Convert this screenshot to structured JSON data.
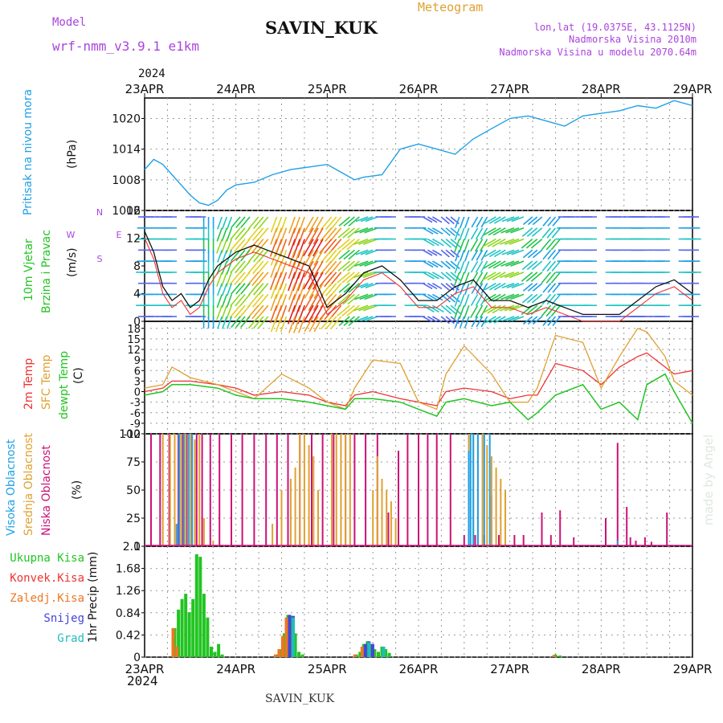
{
  "header": {
    "model_label": "Model",
    "model_name": "wrf-nmm_v3.9.1 e1km",
    "station": "SAVIN_KUK",
    "meteogram": "Meteogram",
    "lonlat": "lon,lat (19.0375E, 43.1125N)",
    "altitude": "Nadmorska Visina 2010m",
    "model_altitude": "Nadmorska Visina u modelu 2070.64m",
    "year": "2024",
    "bottom_year": "2024",
    "footer_station": "SAVIN_KUK",
    "watermark": "made by Angel"
  },
  "colors": {
    "pressure": "#1fa0e6",
    "wind_label": "#22c422",
    "temp2m": "#ee3333",
    "sfc": "#e0a030",
    "dewpt": "#22c422",
    "high_cloud": "#1fa0e6",
    "mid_cloud": "#e0a030",
    "low_cloud": "#cc1177",
    "total_precip": "#22c422",
    "conv": "#ee3333",
    "frozen": "#ee7722",
    "snow": "#4444dd",
    "graupel": "#22bbbb",
    "purple": "#aa44dd"
  },
  "chart_data": [
    {
      "type": "line",
      "panel": "pressure",
      "ylabel": "Pritisak na nivou mora",
      "unit": "(hPa)",
      "yticks": [
        "1020",
        "1014",
        "1008",
        "1002"
      ],
      "ylim": [
        1002,
        1024
      ],
      "x_day_labels": [
        "23APR",
        "24APR",
        "25APR",
        "26APR",
        "27APR",
        "28APR",
        "29APR"
      ],
      "series": [
        {
          "name": "",
          "x_days": [
            0,
            0.1,
            0.2,
            0.3,
            0.4,
            0.5,
            0.6,
            0.7,
            0.8,
            0.9,
            1.0,
            1.2,
            1.4,
            1.6,
            1.8,
            2.0,
            2.1,
            2.2,
            2.3,
            2.4,
            2.6,
            2.8,
            3.0,
            3.2,
            3.4,
            3.6,
            3.8,
            4.0,
            4.2,
            4.4,
            4.6,
            4.8,
            5.0,
            5.2,
            5.4,
            5.6,
            5.8,
            6.0
          ],
          "values": [
            1010,
            1012,
            1011,
            1009,
            1007,
            1005,
            1003.5,
            1003,
            1004,
            1006,
            1007,
            1007.5,
            1009,
            1010,
            1010.5,
            1011,
            1010,
            1009,
            1008,
            1008.5,
            1009,
            1014,
            1015,
            1014,
            1013,
            1016,
            1018,
            1020,
            1020.5,
            1019.5,
            1018.5,
            1020.5,
            1021,
            1021.5,
            1022.5,
            1022,
            1023.5,
            1022.5
          ]
        }
      ]
    },
    {
      "type": "line",
      "panel": "wind",
      "ylabel": [
        "10m Vjetar",
        "Brzina i Pravac"
      ],
      "unit": "(m/s)",
      "compass": [
        "N",
        "W",
        "E",
        "S"
      ],
      "yticks": [
        "16",
        "12",
        "8",
        "4",
        "0"
      ],
      "ylim": [
        0,
        16
      ],
      "speed_scale": [
        0,
        2,
        4,
        6,
        8,
        10,
        12,
        14,
        16,
        18,
        20
      ],
      "series": [
        {
          "name": "",
          "x_days": [
            0,
            0.1,
            0.2,
            0.3,
            0.4,
            0.5,
            0.6,
            0.7,
            0.8,
            0.9,
            1.0,
            1.2,
            1.4,
            1.6,
            1.8,
            2.0,
            2.2,
            2.4,
            2.6,
            2.8,
            3.0,
            3.2,
            3.4,
            3.6,
            3.8,
            4.0,
            4.2,
            4.4,
            4.6,
            4.8,
            5.0,
            5.2,
            5.4,
            5.6,
            5.8,
            6.0
          ],
          "values": [
            13,
            10,
            5,
            3,
            4,
            2,
            3,
            6,
            8,
            9,
            10,
            11,
            10,
            9,
            8,
            2,
            4,
            7,
            8,
            6,
            3,
            3,
            5,
            6,
            3,
            3,
            2,
            3,
            2,
            1,
            1,
            1,
            3,
            5,
            6,
            4
          ]
        }
      ],
      "wind_rows": [
        {
          "speed": [
            2,
            2,
            2,
            4,
            6,
            8,
            10,
            12,
            14,
            14,
            12,
            8,
            6,
            2,
            2,
            2,
            2,
            4,
            4,
            6,
            6,
            4,
            4,
            2,
            2,
            2,
            2,
            2,
            2,
            2
          ],
          "dir_from": [
            270,
            270,
            90,
            180,
            200,
            220,
            220,
            200,
            200,
            210,
            220,
            230,
            250,
            270,
            90,
            120,
            130,
            200,
            210,
            240,
            250,
            230,
            220,
            270,
            270,
            90,
            90,
            270,
            270,
            90
          ]
        },
        {
          "speed": [
            4,
            4,
            4,
            6,
            8,
            10,
            12,
            14,
            16,
            16,
            14,
            10,
            8,
            4,
            4,
            4,
            4,
            6,
            6,
            8,
            8,
            6,
            6,
            4,
            4,
            4,
            4,
            4,
            4,
            4
          ],
          "dir_from": [
            270,
            270,
            90,
            180,
            200,
            220,
            220,
            200,
            200,
            210,
            220,
            230,
            250,
            270,
            90,
            120,
            130,
            200,
            210,
            240,
            250,
            230,
            220,
            270,
            270,
            90,
            90,
            270,
            270,
            90
          ]
        },
        {
          "speed": [
            6,
            6,
            6,
            8,
            10,
            12,
            14,
            16,
            18,
            18,
            16,
            12,
            10,
            6,
            6,
            6,
            6,
            8,
            8,
            10,
            10,
            8,
            8,
            6,
            6,
            6,
            6,
            6,
            6,
            6
          ],
          "dir_from": [
            270,
            270,
            90,
            180,
            200,
            220,
            220,
            200,
            200,
            210,
            220,
            230,
            250,
            270,
            90,
            120,
            130,
            200,
            210,
            240,
            250,
            230,
            220,
            270,
            270,
            90,
            90,
            270,
            270,
            90
          ]
        }
      ]
    },
    {
      "type": "line",
      "panel": "temperature",
      "ylabel": [
        "2m Temp",
        "SFC Temp",
        "dewpt Temp"
      ],
      "unit": "(C)",
      "yticks": [
        "18",
        "15",
        "12",
        "9",
        "6",
        "3",
        "0",
        "-3",
        "-6",
        "-9",
        "-12"
      ],
      "ylim": [
        -12,
        20
      ],
      "series": [
        {
          "name": "2m Temp",
          "x_days": [
            0,
            0.2,
            0.3,
            0.5,
            0.8,
            1.0,
            1.2,
            1.5,
            1.8,
            2.0,
            2.2,
            2.3,
            2.5,
            2.8,
            3.0,
            3.2,
            3.3,
            3.5,
            3.8,
            4.0,
            4.2,
            4.3,
            4.5,
            4.8,
            5.0,
            5.2,
            5.4,
            5.5,
            5.7,
            5.8,
            6.0
          ],
          "values": [
            0,
            1,
            3,
            3,
            2,
            1,
            -1,
            0,
            -1,
            -3,
            -4,
            -1,
            0,
            -2,
            -3,
            -4,
            0,
            1,
            0,
            -2,
            -1,
            -1,
            8,
            6,
            2,
            7,
            10,
            11,
            7,
            5,
            6
          ]
        },
        {
          "name": "SFC Temp",
          "x_days": [
            0,
            0.2,
            0.3,
            0.5,
            0.8,
            1.0,
            1.2,
            1.5,
            1.8,
            2.0,
            2.2,
            2.3,
            2.5,
            2.8,
            3.0,
            3.2,
            3.3,
            3.5,
            3.8,
            4.0,
            4.2,
            4.3,
            4.5,
            4.8,
            5.0,
            5.2,
            5.4,
            5.5,
            5.7,
            5.8,
            6.0
          ],
          "values": [
            1,
            2,
            7,
            4,
            2,
            0,
            -2,
            5,
            1,
            -3,
            -5,
            1,
            9,
            8,
            -3,
            -5,
            5,
            13,
            5,
            -3,
            -3,
            1,
            16,
            14,
            1,
            10,
            18,
            17,
            10,
            3,
            -1
          ]
        },
        {
          "name": "dewpt Temp",
          "x_days": [
            0,
            0.2,
            0.3,
            0.5,
            0.8,
            1.0,
            1.2,
            1.5,
            1.8,
            2.0,
            2.2,
            2.3,
            2.5,
            2.8,
            3.0,
            3.2,
            3.3,
            3.5,
            3.8,
            4.0,
            4.2,
            4.3,
            4.5,
            4.8,
            5.0,
            5.2,
            5.4,
            5.5,
            5.7,
            5.8,
            6.0
          ],
          "values": [
            -1,
            0,
            2,
            2,
            1,
            -1,
            -2,
            -2,
            -3,
            -4,
            -5,
            -2,
            -2,
            -3,
            -5,
            -7,
            -3,
            -2,
            -4,
            -3,
            -8,
            -6,
            -1,
            2,
            -5,
            -3,
            -8,
            2,
            5,
            0,
            -9
          ]
        }
      ]
    },
    {
      "type": "bar",
      "panel": "clouds",
      "ylabel": [
        "Visoka Oblacnost",
        "Srednja Oblacnost",
        "Niska Oblacnost"
      ],
      "unit": "(%)",
      "yticks": [
        "100",
        "75",
        "50",
        "25",
        "0"
      ],
      "ylim": [
        0,
        100
      ],
      "series": [
        {
          "name": "Niska Oblacnost",
          "x_days": [
            0.07,
            0.17,
            0.27,
            0.37,
            0.42,
            0.46,
            0.52,
            0.57,
            0.63,
            0.72,
            0.82,
            0.95,
            1.07,
            1.2,
            1.33,
            1.45,
            1.57,
            1.7,
            1.83,
            1.95,
            2.07,
            2.2,
            2.3,
            2.42,
            2.55,
            2.67,
            2.78,
            2.88,
            3.0,
            3.1,
            3.2,
            3.35,
            3.5,
            3.62,
            3.72,
            3.8,
            3.88,
            4.05,
            4.15,
            4.35,
            4.45,
            4.55,
            4.7,
            5.05,
            5.18,
            5.28,
            5.32,
            5.38,
            5.48,
            5.55,
            5.72
          ],
          "values": [
            100,
            100,
            100,
            100,
            100,
            100,
            100,
            100,
            100,
            100,
            100,
            100,
            100,
            100,
            100,
            100,
            100,
            100,
            100,
            100,
            100,
            100,
            100,
            100,
            100,
            30,
            85,
            100,
            100,
            100,
            100,
            100,
            10,
            10,
            10,
            45,
            10,
            10,
            10,
            30,
            10,
            32,
            8,
            25,
            92,
            35,
            8,
            5,
            8,
            4,
            30
          ]
        },
        {
          "name": "Srednja Oblacnost",
          "x_days": [
            0.2,
            0.28,
            0.33,
            0.4,
            0.45,
            0.5,
            0.55,
            0.6,
            0.65,
            0.75,
            1.4,
            1.5,
            1.6,
            1.65,
            1.7,
            1.75,
            1.8,
            1.85,
            1.9,
            2.05,
            2.1,
            2.15,
            2.2,
            2.25,
            2.5,
            2.55,
            2.6,
            2.65,
            2.7,
            2.75,
            3.55,
            3.6,
            3.65,
            3.7,
            3.75,
            3.8,
            3.85,
            3.9,
            3.95
          ],
          "values": [
            100,
            100,
            100,
            100,
            100,
            100,
            95,
            100,
            25,
            5,
            20,
            50,
            60,
            70,
            100,
            100,
            90,
            80,
            50,
            100,
            100,
            100,
            100,
            100,
            50,
            80,
            60,
            50,
            40,
            25,
            100,
            100,
            100,
            100,
            90,
            80,
            70,
            60,
            50
          ]
        },
        {
          "name": "Visoka Oblacnost",
          "x_days": [
            0.35,
            0.38,
            0.43,
            0.48,
            0.52,
            3.55,
            3.57,
            3.6,
            3.65,
            3.72,
            3.78,
            5.18
          ],
          "values": [
            20,
            100,
            100,
            100,
            100,
            85,
            100,
            100,
            100,
            100,
            100,
            5
          ]
        }
      ]
    },
    {
      "type": "bar",
      "panel": "precip",
      "ylabel": "1hr Precip (mm)",
      "legend": [
        "Ukupna Kisa",
        "Konvek.Kisa",
        "Zaledj.Kisa",
        "Snijeg",
        "Grad"
      ],
      "yticks": [
        "2.1",
        "1.68",
        "1.26",
        "0.84",
        "0.42",
        "0"
      ],
      "ylim": [
        0,
        2.1
      ],
      "series": [
        {
          "name": "Ukupna Kisa",
          "x_days": [
            0.33,
            0.37,
            0.41,
            0.45,
            0.49,
            0.53,
            0.57,
            0.61,
            0.65,
            0.69,
            0.73,
            0.77,
            0.81,
            0.85,
            1.45,
            1.49,
            1.53,
            1.57,
            1.61,
            1.65,
            1.69,
            1.73,
            2.32,
            2.36,
            2.4,
            2.44,
            2.48,
            2.52,
            2.56,
            2.6,
            2.64,
            2.68,
            4.5,
            4.55
          ],
          "values": [
            0.55,
            0.9,
            1.1,
            1.2,
            0.85,
            1.1,
            1.95,
            1.9,
            1.2,
            0.75,
            0.2,
            0.1,
            0.25,
            0.05,
            0.05,
            0.15,
            0.45,
            0.8,
            0.78,
            0.45,
            0.1,
            0.05,
            0.05,
            0.1,
            0.25,
            0.3,
            0.25,
            0.15,
            0.1,
            0.2,
            0.15,
            0.08,
            0.05,
            0.03
          ]
        },
        {
          "name": "Zaledj.Kisa",
          "x_days": [
            0.33,
            0.37,
            1.45,
            1.49,
            1.53,
            1.57,
            2.32,
            2.4,
            2.52,
            4.5
          ],
          "values": [
            0.55,
            0.2,
            0.05,
            0.15,
            0.4,
            0.75,
            0.05,
            0.2,
            0.1,
            0.04
          ]
        },
        {
          "name": "Snijeg",
          "x_days": [
            1.57,
            1.61,
            2.4,
            2.44,
            2.48
          ],
          "values": [
            0.8,
            0.78,
            0.25,
            0.3,
            0.25
          ]
        },
        {
          "name": "Grad",
          "x_days": [
            1.61,
            2.44,
            2.6
          ],
          "values": [
            0.75,
            0.28,
            0.2
          ]
        }
      ]
    }
  ]
}
